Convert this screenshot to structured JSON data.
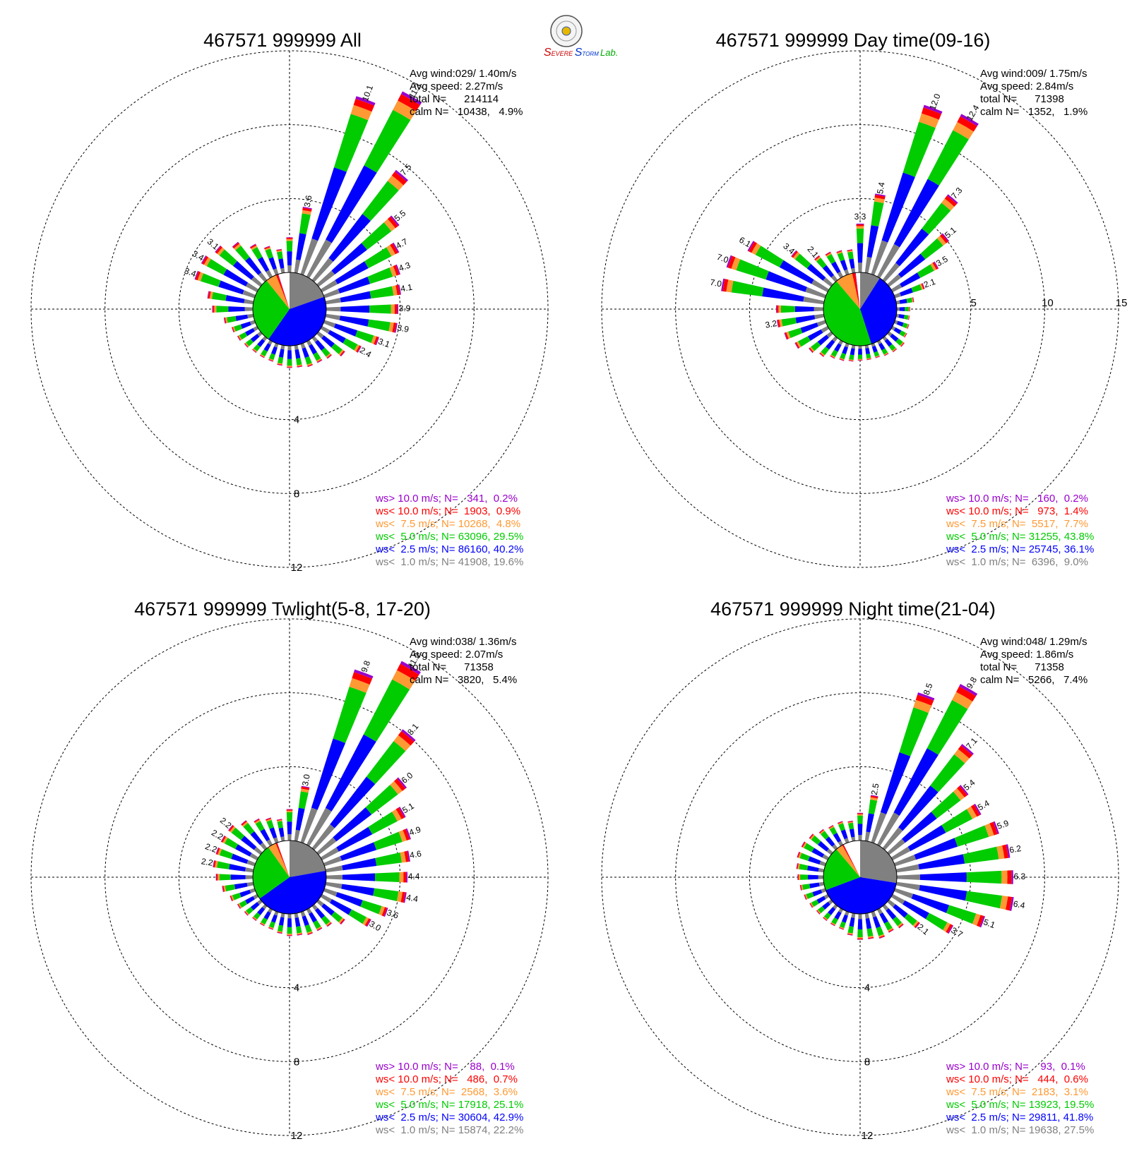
{
  "logo": {
    "text": "Severe Storm Lab."
  },
  "colors": {
    "gt10": "#9900cc",
    "lt10": "#ff0000",
    "lt75": "#ff9933",
    "lt5": "#00cc00",
    "lt25": "#0000ff",
    "lt1": "#808080",
    "calm": "#ffffff",
    "grid": "#000000"
  },
  "chart_data": [
    {
      "type": "windrose",
      "title": "467571 999999 All",
      "rings": [
        4,
        8,
        12
      ],
      "ring_labels": [
        "4",
        "8",
        "12"
      ],
      "stats": [
        "Avg wind:029/ 1.40m/s",
        "Avg speed: 2.27m/s",
        "total N=      214114",
        "calm N=   10438,   4.9%"
      ],
      "legend": [
        {
          "text": "ws> 10.0 m/s; N=   341,  0.2%",
          "color": "#9900cc"
        },
        {
          "text": "ws< 10.0 m/s; N=  1903,  0.9%",
          "color": "#ff0000"
        },
        {
          "text": "ws<  7.5 m/s; N= 10268,  4.8%",
          "color": "#ff9933"
        },
        {
          "text": "ws<  5.0 m/s; N= 63096, 29.5%",
          "color": "#00cc00"
        },
        {
          "text": "ws<  2.5 m/s; N= 86160, 40.2%",
          "color": "#0000ff"
        },
        {
          "text": "ws<  1.0 m/s; N= 41908, 19.6%",
          "color": "#808080"
        }
      ],
      "pie": [
        19.6,
        40.2,
        29.5,
        4.8,
        0.9,
        0.2,
        4.9
      ],
      "directions": [
        0,
        10,
        20,
        30,
        40,
        50,
        60,
        70,
        80,
        90,
        100,
        110,
        120,
        130,
        140,
        150,
        160,
        170,
        180,
        190,
        200,
        210,
        220,
        230,
        240,
        250,
        260,
        270,
        280,
        290,
        300,
        310,
        320,
        330,
        340,
        350
      ],
      "totals": [
        1.9,
        3.6,
        10.1,
        11.3,
        7.5,
        5.5,
        4.7,
        4.3,
        4.1,
        3.9,
        3.9,
        3.1,
        2.4,
        1.8,
        1.4,
        1.3,
        1.3,
        1.2,
        1.2,
        1.1,
        1.0,
        1.0,
        1.0,
        1.1,
        1.2,
        1.3,
        1.6,
        2.2,
        2.5,
        3.4,
        3.4,
        3.1,
        2.6,
        2.0,
        1.6,
        1.3
      ],
      "labels": {
        "10": "3.6",
        "20": "10.1",
        "30": "11.3",
        "40": "7.5",
        "50": "5.5",
        "60": "4.7",
        "70": "4.3",
        "80": "4.1",
        "90": "3.9",
        "100": "3.9",
        "110": "3.1",
        "120": "2.4",
        "290": "3.4",
        "300": "3.4",
        "310": "3.1"
      }
    },
    {
      "type": "windrose",
      "title": "467571 999999 Day time(09-16)",
      "rings": [
        5,
        10,
        15
      ],
      "ring_labels": [
        "5",
        "10",
        "15"
      ],
      "stats": [
        "Avg wind:009/ 1.75m/s",
        "Avg speed: 2.84m/s",
        "total N=      71398",
        "calm N=   1352,   1.9%"
      ],
      "legend": [
        {
          "text": "ws> 10.0 m/s; N=   160,  0.2%",
          "color": "#9900cc"
        },
        {
          "text": "ws< 10.0 m/s; N=   973,  1.4%",
          "color": "#ff0000"
        },
        {
          "text": "ws<  7.5 m/s; N=  5517,  7.7%",
          "color": "#ff9933"
        },
        {
          "text": "ws<  5.0 m/s; N= 31255, 43.8%",
          "color": "#00cc00"
        },
        {
          "text": "ws<  2.5 m/s; N= 25745, 36.1%",
          "color": "#0000ff"
        },
        {
          "text": "ws<  1.0 m/s; N=  6396,  9.0%",
          "color": "#808080"
        }
      ],
      "pie": [
        9.0,
        36.1,
        43.8,
        7.7,
        1.4,
        0.2,
        1.9
      ],
      "directions": [
        0,
        10,
        20,
        30,
        40,
        50,
        60,
        70,
        80,
        90,
        100,
        110,
        120,
        130,
        140,
        150,
        160,
        170,
        180,
        190,
        200,
        210,
        220,
        230,
        240,
        250,
        260,
        270,
        280,
        290,
        300,
        310,
        320,
        330,
        340,
        350
      ],
      "totals": [
        3.3,
        5.4,
        12.0,
        12.4,
        7.3,
        5.1,
        3.5,
        2.1,
        1.2,
        0.9,
        0.9,
        1.0,
        1.1,
        1.3,
        1.2,
        1.1,
        1.0,
        1.0,
        1.0,
        1.1,
        1.2,
        1.3,
        1.6,
        1.9,
        2.5,
        2.9,
        3.2,
        3.2,
        7.0,
        7.0,
        6.1,
        3.4,
        2.1,
        1.9,
        1.7,
        1.6
      ],
      "labels": {
        "0": "3.3",
        "10": "5.4",
        "20": "12.0",
        "30": "12.4",
        "40": "7.3",
        "50": "5.1",
        "60": "3.5",
        "70": "2.1",
        "260": "3.2",
        "280": "7.0",
        "290": "7.0",
        "300": "6.1",
        "310": "3.4",
        "320": "2.1"
      }
    },
    {
      "type": "windrose",
      "title": "467571 999999 Twlight(5-8, 17-20)",
      "rings": [
        4,
        8,
        12
      ],
      "ring_labels": [
        "4",
        "8",
        "12"
      ],
      "stats": [
        "Avg wind:038/ 1.36m/s",
        "Avg speed: 2.07m/s",
        "total N=      71358",
        "calm N=   3820,   5.4%"
      ],
      "legend": [
        {
          "text": "ws> 10.0 m/s; N=    88,  0.1%",
          "color": "#9900cc"
        },
        {
          "text": "ws< 10.0 m/s; N=   486,  0.7%",
          "color": "#ff0000"
        },
        {
          "text": "ws<  7.5 m/s; N=  2568,  3.6%",
          "color": "#ff9933"
        },
        {
          "text": "ws<  5.0 m/s; N= 17918, 25.1%",
          "color": "#00cc00"
        },
        {
          "text": "ws<  2.5 m/s; N= 30604, 42.9%",
          "color": "#0000ff"
        },
        {
          "text": "ws<  1.0 m/s; N= 15874, 22.2%",
          "color": "#808080"
        }
      ],
      "pie": [
        22.2,
        42.9,
        25.1,
        3.6,
        0.7,
        0.1,
        5.4
      ],
      "directions": [
        0,
        10,
        20,
        30,
        40,
        50,
        60,
        70,
        80,
        90,
        100,
        110,
        120,
        130,
        140,
        150,
        160,
        170,
        180,
        190,
        200,
        210,
        220,
        230,
        240,
        250,
        260,
        270,
        280,
        290,
        300,
        310,
        320,
        330,
        340,
        350
      ],
      "totals": [
        1.7,
        3.0,
        9.8,
        11.2,
        8.1,
        6.0,
        5.1,
        4.9,
        4.6,
        4.4,
        4.4,
        3.6,
        3.0,
        1.8,
        1.4,
        1.3,
        1.3,
        1.2,
        1.2,
        1.1,
        1.0,
        1.0,
        1.0,
        1.1,
        1.2,
        1.4,
        1.7,
        2.0,
        2.2,
        2.2,
        2.2,
        2.2,
        1.9,
        1.6,
        1.4,
        1.2
      ],
      "labels": {
        "10": "3.0",
        "20": "9.8",
        "30": "11.2",
        "40": "8.1",
        "50": "6.0",
        "60": "5.1",
        "70": "4.9",
        "80": "4.6",
        "90": "4.4",
        "100": "4.4",
        "110": "3.6",
        "120": "3.0",
        "280": "2.2",
        "290": "2.2",
        "300": "2.2",
        "310": "2.2"
      }
    },
    {
      "type": "windrose",
      "title": "467571 999999 Night time(21-04)",
      "rings": [
        4,
        8,
        12
      ],
      "ring_labels": [
        "4",
        "8",
        "12"
      ],
      "stats": [
        "Avg wind:048/ 1.29m/s",
        "Avg speed: 1.86m/s",
        "total N=      71358",
        "calm N=   5266,   7.4%"
      ],
      "legend": [
        {
          "text": "ws> 10.0 m/s; N=    93,  0.1%",
          "color": "#9900cc"
        },
        {
          "text": "ws< 10.0 m/s; N=   444,  0.6%",
          "color": "#ff0000"
        },
        {
          "text": "ws<  7.5 m/s; N=  2183,  3.1%",
          "color": "#ff9933"
        },
        {
          "text": "ws<  5.0 m/s; N= 13923, 19.5%",
          "color": "#00cc00"
        },
        {
          "text": "ws<  2.5 m/s; N= 29811, 41.8%",
          "color": "#0000ff"
        },
        {
          "text": "ws<  1.0 m/s; N= 19638, 27.5%",
          "color": "#808080"
        }
      ],
      "pie": [
        27.5,
        41.8,
        19.5,
        3.1,
        0.6,
        0.1,
        7.4
      ],
      "directions": [
        0,
        10,
        20,
        30,
        40,
        50,
        60,
        70,
        80,
        90,
        100,
        110,
        120,
        130,
        140,
        150,
        160,
        170,
        180,
        190,
        200,
        210,
        220,
        230,
        240,
        250,
        260,
        270,
        280,
        290,
        300,
        310,
        320,
        330,
        340,
        350
      ],
      "totals": [
        1.5,
        2.5,
        8.5,
        9.8,
        7.1,
        5.4,
        5.4,
        5.9,
        6.2,
        6.3,
        6.4,
        5.1,
        3.7,
        2.1,
        1.5,
        1.4,
        1.5,
        1.4,
        1.4,
        1.2,
        1.0,
        1.0,
        1.0,
        1.0,
        1.1,
        1.2,
        1.3,
        1.4,
        1.5,
        1.6,
        1.6,
        1.5,
        1.3,
        1.2,
        1.2,
        1.1
      ],
      "labels": {
        "10": "2.5",
        "20": "8.5",
        "30": "9.8",
        "40": "7.1",
        "50": "5.4",
        "60": "5.4",
        "70": "5.9",
        "80": "6.2",
        "90": "6.3",
        "100": "6.4",
        "110": "5.1",
        "120": "3.7",
        "130": "2.1"
      }
    }
  ]
}
